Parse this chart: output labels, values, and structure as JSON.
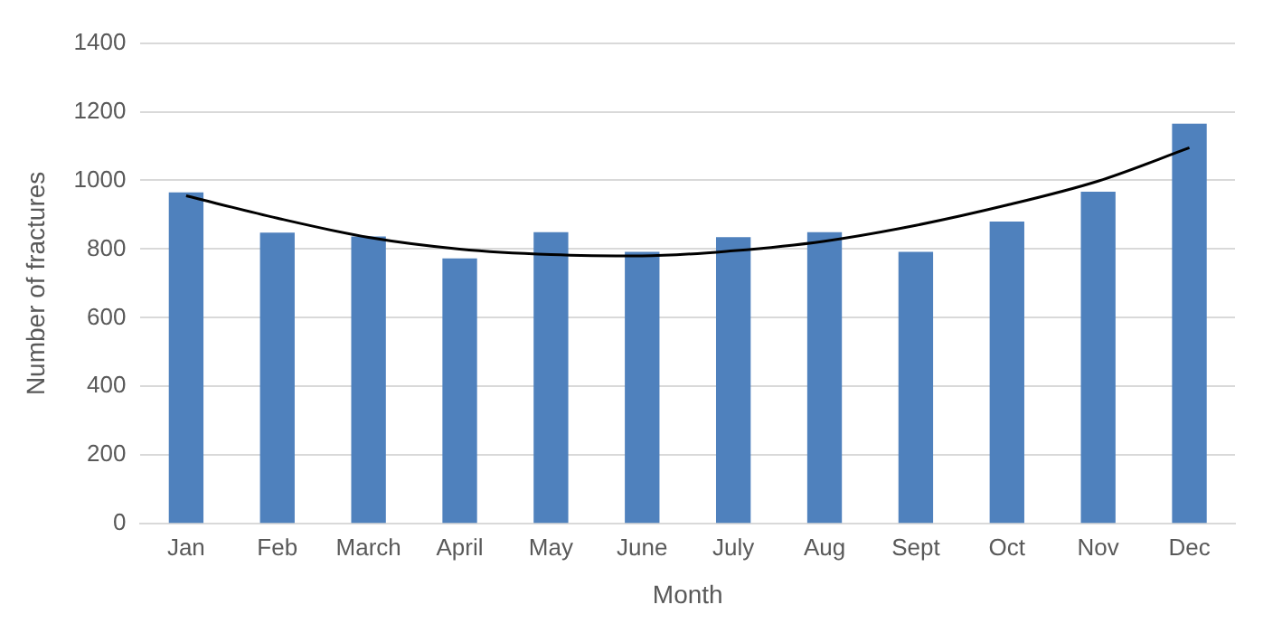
{
  "chart_data": {
    "type": "bar",
    "xlabel": "Month",
    "ylabel": "Number of fractures",
    "categories": [
      "Jan",
      "Feb",
      "March",
      "April",
      "May",
      "June",
      "July",
      "Aug",
      "Sept",
      "Oct",
      "Nov",
      "Dec"
    ],
    "series": [
      {
        "color": "#4f81bd",
        "values": [
          965,
          848,
          837,
          773,
          849,
          792,
          835,
          849,
          792,
          880,
          967,
          1165
        ]
      },
      {
        "type": "line",
        "color": "#000000",
        "x": [
          "Jan",
          "Feb",
          "March",
          "April",
          "May",
          "June",
          "July",
          "Aug",
          "Sept",
          "Oct",
          "Nov",
          "Dec"
        ],
        "values": [
          955,
          890,
          834,
          800,
          784,
          780,
          795,
          823,
          869,
          928,
          998,
          1095
        ],
        "marker": "none"
      }
    ],
    "ylim": [
      0,
      1400
    ],
    "yticks": [
      0,
      200,
      400,
      600,
      800,
      1000,
      1200,
      1400
    ],
    "grid": "y",
    "legend": false
  }
}
